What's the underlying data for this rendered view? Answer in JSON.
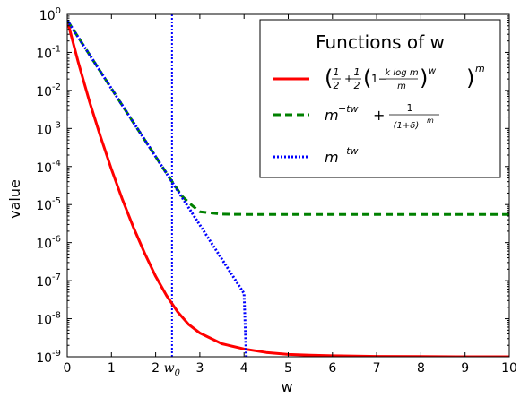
{
  "chart_data": {
    "type": "line",
    "xlabel": "w",
    "ylabel": "value",
    "xlim": [
      0,
      10
    ],
    "ylim": [
      1e-09,
      1
    ],
    "yscale": "log",
    "grid": false,
    "x_ticks": [
      "0",
      "1",
      "2",
      "3",
      "4",
      "5",
      "6",
      "7",
      "8",
      "9",
      "10"
    ],
    "x_tick_values": [
      0,
      1,
      2,
      3,
      4,
      5,
      6,
      7,
      8,
      9,
      10
    ],
    "y_tick_exponents": [
      0,
      -1,
      -2,
      -3,
      -4,
      -5,
      -6,
      -7,
      -8,
      -9
    ],
    "y_tick_base": "10",
    "legend": {
      "title": "Functions of w",
      "placement": "top-right"
    },
    "series": [
      {
        "id": "red",
        "color": "#ff0000",
        "style": "solid",
        "label_parts": {
          "half": "1",
          "half_den": "2",
          "num": "k log m",
          "den": "m",
          "exp_w": "w",
          "exp_m": "m"
        },
        "x": [
          0,
          0.25,
          0.5,
          0.75,
          1,
          1.25,
          1.5,
          1.75,
          2,
          2.25,
          2.5,
          2.75,
          3,
          3.5,
          4,
          4.5,
          5,
          5.5,
          6,
          7,
          8,
          9,
          10
        ],
        "y": [
          0.7,
          0.055,
          0.0052,
          0.00062,
          8.5e-05,
          1.35e-05,
          2.5e-06,
          5.3e-07,
          1.3e-07,
          4e-08,
          1.5e-08,
          7e-09,
          4.2e-09,
          2.2e-09,
          1.6e-09,
          1.3e-09,
          1.15e-09,
          1.1e-09,
          1.06e-09,
          1.02e-09,
          1.01e-09,
          1e-09,
          1e-09
        ]
      },
      {
        "id": "green",
        "color": "#008000",
        "style": "dashed",
        "label_parts": {
          "base": "m",
          "exp": "−tw",
          "plus": "+",
          "num": "1",
          "den": "(1+δ)",
          "den_exp": "m"
        },
        "x": [
          0,
          0.5,
          1,
          1.5,
          2,
          2.2,
          2.4,
          2.6,
          2.8,
          3,
          3.5,
          4,
          5,
          6,
          7,
          8,
          9,
          10
        ],
        "y": [
          0.7,
          0.088,
          0.0112,
          0.00142,
          0.000182,
          8e-05,
          3.6e-05,
          1.65e-05,
          1e-05,
          6.5e-06,
          5.6e-06,
          5.5e-06,
          5.5e-06,
          5.5e-06,
          5.5e-06,
          5.5e-06,
          5.5e-06,
          5.5e-06
        ]
      },
      {
        "id": "blue",
        "color": "#0000ff",
        "style": "dotted",
        "label_parts": {
          "base": "m",
          "exp": "−tw"
        },
        "x": [
          0,
          1,
          2,
          3,
          4,
          4.05
        ],
        "y": [
          0.7,
          0.0112,
          0.000182,
          2.9e-06,
          4.6e-08,
          1e-09
        ]
      }
    ],
    "vline": {
      "x": 2.37,
      "label_base": "w",
      "label_sub": "0",
      "color": "#0000ff",
      "style": "dotted"
    }
  }
}
